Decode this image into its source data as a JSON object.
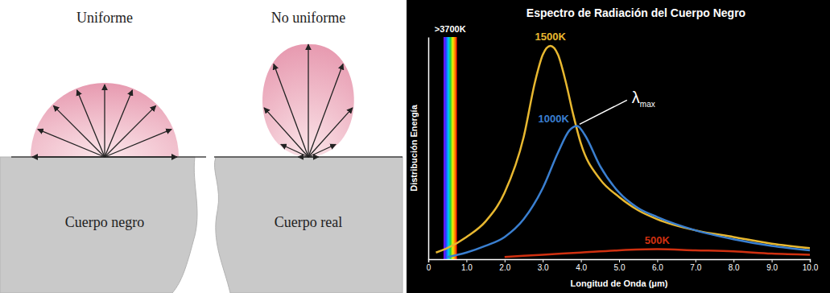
{
  "diagram": {
    "panels": [
      {
        "title": "Uniforme",
        "label": "Cuerpo negro"
      },
      {
        "title": "No uniforme",
        "label": "Cuerpo real"
      }
    ]
  },
  "chart_data": {
    "type": "line",
    "title": "Espectro de Radiación del Cuerpo Negro",
    "x_label": "Longitud de Onda (μm)",
    "y_label": "Distribución Energía",
    "xlim": [
      0,
      10
    ],
    "ylim": [
      0,
      100
    ],
    "xticks": [
      0,
      {
        "value": 1,
        "label": "1.0"
      },
      {
        "value": 2,
        "label": "2.0"
      },
      {
        "value": 3,
        "label": "3.0"
      },
      {
        "value": 4,
        "label": "4.0"
      },
      {
        "value": 5,
        "label": "5.0"
      },
      {
        "value": 6,
        "label": "6.0"
      },
      {
        "value": 7,
        "label": "7.0"
      },
      {
        "value": 8,
        "label": "8.0"
      },
      {
        "value": 9,
        "label": "9.0"
      },
      {
        "value": 10,
        "label": "10.0"
      }
    ],
    "yticks": [],
    "tick_labels": "x",
    "grid": false,
    "band": {
      "label": ">3700K",
      "range": [
        0.4,
        0.75
      ]
    },
    "annotations": [
      {
        "text": "λmax",
        "x": 3.9,
        "y": 60
      }
    ],
    "series": [
      {
        "name": "1500K",
        "color": "#e8b830",
        "x": [
          0.2,
          0.5,
          1.0,
          1.5,
          2.0,
          2.5,
          2.8,
          3.0,
          3.2,
          3.4,
          3.6,
          3.8,
          4.0,
          4.5,
          5.0,
          5.5,
          6.0,
          7.0,
          8.0,
          9.0,
          10.0
        ],
        "values": [
          3,
          5,
          10,
          17,
          30,
          55,
          80,
          92,
          96,
          92,
          80,
          65,
          52,
          36,
          28,
          22,
          18,
          13,
          10,
          7,
          5
        ]
      },
      {
        "name": "1000K",
        "color": "#3a7fd0",
        "x": [
          0.5,
          1.0,
          1.5,
          2.0,
          2.5,
          3.0,
          3.4,
          3.7,
          3.9,
          4.1,
          4.5,
          5.0,
          5.5,
          6.0,
          7.0,
          8.0,
          9.0,
          10.0
        ],
        "values": [
          1,
          3,
          6,
          10,
          18,
          32,
          48,
          58,
          60,
          56,
          42,
          30,
          23,
          19,
          13,
          9,
          6,
          4
        ]
      },
      {
        "name": "500K",
        "color": "#d03010",
        "x": [
          2.0,
          3.0,
          4.0,
          5.0,
          6.0,
          7.0,
          8.0,
          9.0,
          10.0
        ],
        "values": [
          1,
          2,
          3,
          4,
          4.5,
          4,
          3.5,
          2.5,
          2
        ]
      }
    ]
  }
}
